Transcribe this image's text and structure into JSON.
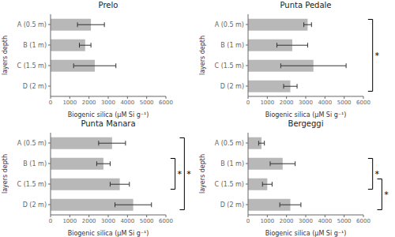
{
  "chart_data": [
    {
      "type": "bar",
      "orientation": "horizontal",
      "title": "Prelo",
      "categories": [
        "A (0.5 m)",
        "B (1 m)",
        "C (1.5 m)",
        "D (2 m)"
      ],
      "values": [
        2100,
        1800,
        2300,
        0
      ],
      "errors": [
        700,
        300,
        1100,
        0
      ],
      "xlabel": "Biogenic silica (μM Si g⁻¹)",
      "ylabel": "layers depth",
      "xlim": [
        0,
        6000
      ],
      "xticks": [
        0,
        1000,
        2000,
        3000,
        4000,
        5000,
        6000
      ],
      "color": "#b8b8b8",
      "grid": false,
      "annotations": []
    },
    {
      "type": "bar",
      "orientation": "horizontal",
      "title": "Punta Pedale",
      "categories": [
        "A (0.5 m)",
        "B (1 m)",
        "C (1.5 m)",
        "D (2 m)"
      ],
      "values": [
        3100,
        2300,
        3400,
        2200
      ],
      "errors": [
        200,
        800,
        1700,
        350
      ],
      "xlabel": "Biogenic silica (μM Si g⁻¹)",
      "ylabel": "layers depth",
      "xlim": [
        0,
        6000
      ],
      "xticks": [
        0,
        1000,
        2000,
        3000,
        4000,
        5000,
        6000
      ],
      "color": "#b8b8b8",
      "grid": false,
      "annotations": [
        {
          "text": "*",
          "categories": [
            "A (0.5 m)",
            "D (2 m)"
          ]
        }
      ]
    },
    {
      "type": "bar",
      "orientation": "horizontal",
      "title": "Punta Manara",
      "categories": [
        "A (0.5 m)",
        "B (1 m)",
        "C (1.5 m)",
        "D (2 m)"
      ],
      "values": [
        3200,
        2750,
        3600,
        4300
      ],
      "errors": [
        700,
        350,
        500,
        950
      ],
      "xlabel": "Biogenic silica (μM Si g⁻¹)",
      "ylabel": "layers depth",
      "xlim": [
        0,
        6000
      ],
      "xticks": [
        0,
        1000,
        2000,
        3000,
        4000,
        5000,
        6000
      ],
      "color": "#b8b8b8",
      "grid": false,
      "annotations": [
        {
          "text": "*",
          "categories": [
            "B (1 m)",
            "C (1.5 m)"
          ]
        },
        {
          "text": "*",
          "categories": [
            "A (0.5 m)",
            "D (2 m)"
          ]
        }
      ]
    },
    {
      "type": "bar",
      "orientation": "horizontal",
      "title": "Bergeggi",
      "categories": [
        "A (0.5 m)",
        "B (1 m)",
        "C (1.5 m)",
        "D (2 m)"
      ],
      "values": [
        700,
        1800,
        1000,
        2200
      ],
      "errors": [
        150,
        650,
        250,
        550
      ],
      "xlabel": "Biogenic silica (μM Si g⁻¹)",
      "ylabel": "layers depth",
      "xlim": [
        0,
        6000
      ],
      "xticks": [
        0,
        1000,
        2000,
        3000,
        4000,
        5000,
        6000
      ],
      "color": "#b8b8b8",
      "grid": false,
      "annotations": [
        {
          "text": "*",
          "categories": [
            "B (1 m)",
            "C (1.5 m)"
          ]
        },
        {
          "text": "*",
          "categories": [
            "C (1.5 m)",
            "D (2 m)"
          ]
        }
      ]
    }
  ]
}
